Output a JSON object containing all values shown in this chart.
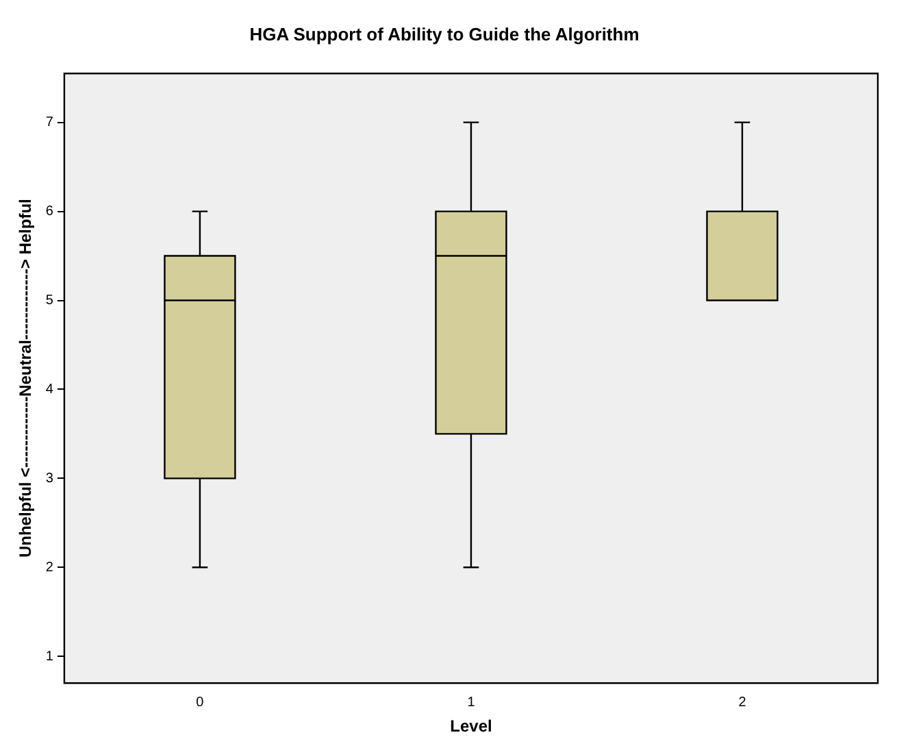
{
  "chart_data": {
    "type": "box",
    "title": "HGA Support of Ability to Guide the Algorithm",
    "xlabel": "Level",
    "ylabel": "Unhelpful <-------------Neutral-------------> Helpful",
    "categories": [
      "0",
      "1",
      "2"
    ],
    "color": "#d4cf9a",
    "boxes": [
      {
        "low": 2,
        "q1": 3,
        "median": 5,
        "q3": 5.5,
        "high": 6
      },
      {
        "low": 2,
        "q1": 3.5,
        "median": 5.5,
        "q3": 6,
        "high": 7
      },
      {
        "low": 5,
        "q1": 5,
        "median": 6,
        "q3": 6,
        "high": 7
      }
    ],
    "ylim": [
      0.7,
      7.55
    ],
    "yticks": [
      1,
      2,
      3,
      4,
      5,
      6,
      7
    ],
    "grid": false,
    "legend": false
  }
}
